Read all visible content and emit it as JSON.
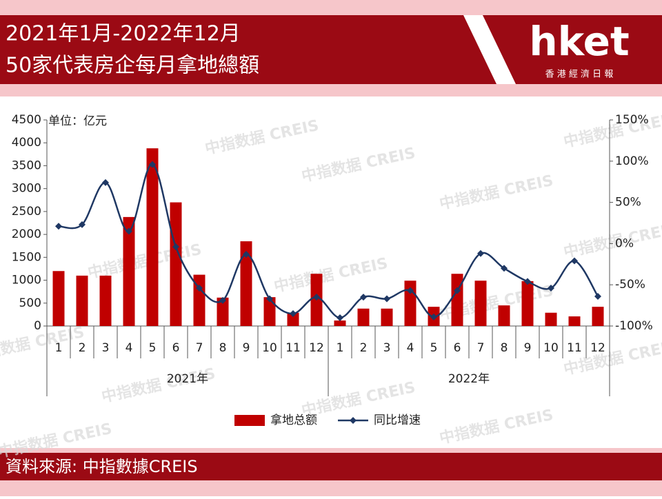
{
  "header": {
    "logo": "hket",
    "logo_tagline": "香 港 經 濟 日 報"
  },
  "chart_data": {
    "type": "bar",
    "title": "2021年1月-2022年12月",
    "subtitle": "50家代表房企每月拿地總額",
    "y_label": "单位：亿元",
    "source": "資料來源: 中指數據CREIS",
    "watermark": "中指数据 CREIS",
    "categories": [
      "1",
      "2",
      "3",
      "4",
      "5",
      "6",
      "7",
      "8",
      "9",
      "10",
      "11",
      "12",
      "1",
      "2",
      "3",
      "4",
      "5",
      "6",
      "7",
      "8",
      "9",
      "10",
      "11",
      "12"
    ],
    "groups": [
      "2021年",
      "2022年"
    ],
    "series": [
      {
        "name": "拿地总额",
        "type": "bar",
        "color": "#c00000",
        "axis": "y",
        "values": [
          1200,
          1100,
          1100,
          2380,
          3880,
          2700,
          1120,
          620,
          1850,
          630,
          290,
          1140,
          120,
          380,
          380,
          990,
          420,
          1140,
          990,
          450,
          980,
          290,
          210,
          420
        ]
      },
      {
        "name": "同比增速",
        "type": "line",
        "color": "#1f3864",
        "axis": "y2",
        "values": [
          21,
          23,
          74,
          15,
          96,
          -4,
          -54,
          -69,
          -13,
          -67,
          -85,
          -65,
          -90,
          -65,
          -67,
          -57,
          -89,
          -57,
          -12,
          -30,
          -46,
          -54,
          -21,
          -64
        ]
      }
    ],
    "ylim": [
      0,
      4500
    ],
    "yticks": [
      0,
      500,
      1000,
      1500,
      2000,
      2500,
      3000,
      3500,
      4000,
      4500
    ],
    "y2lim": [
      -100,
      150
    ],
    "y2ticks": [
      {
        "value": -100,
        "label": "-100%"
      },
      {
        "value": -50,
        "label": "-50%"
      },
      {
        "value": 0,
        "label": "0%"
      },
      {
        "value": 50,
        "label": "50%"
      },
      {
        "value": 100,
        "label": "100%"
      },
      {
        "value": 150,
        "label": "150%"
      }
    ]
  }
}
